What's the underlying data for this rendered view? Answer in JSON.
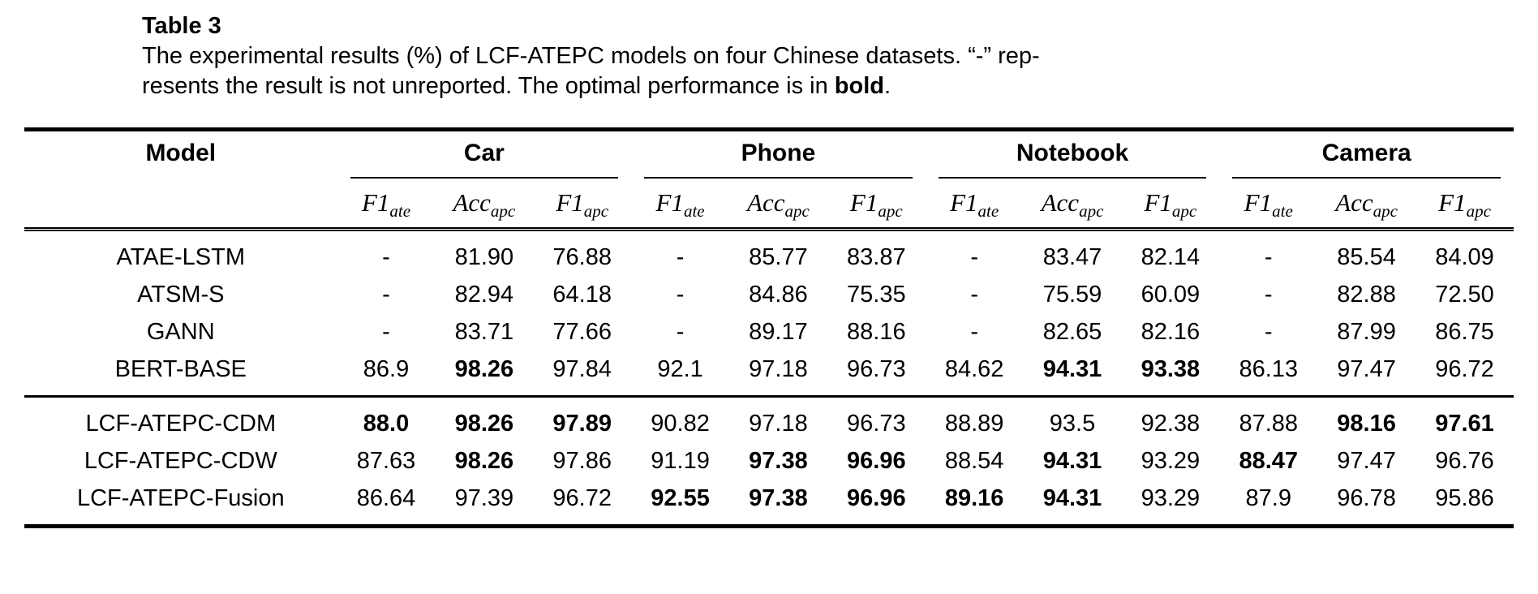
{
  "caption": {
    "label": "Table 3",
    "line1": "The experimental results (%) of LCF-ATEPC models on four Chinese datasets. “-” rep-",
    "line2_pre": "resents the result is not unreported. The optimal performance is in ",
    "line2_bold": "bold",
    "line2_post": "."
  },
  "table": {
    "model_header": "Model",
    "col_groups": [
      "Car",
      "Phone",
      "Notebook",
      "Camera"
    ],
    "sub_columns": [
      {
        "name": "F1",
        "sub": "ate"
      },
      {
        "name": "Acc",
        "sub": "apc"
      },
      {
        "name": "F1",
        "sub": "apc"
      }
    ],
    "row_groups": [
      {
        "rows": [
          {
            "model": "ATAE-LSTM",
            "values": [
              "-",
              "81.90",
              "76.88",
              "-",
              "85.77",
              "83.87",
              "-",
              "83.47",
              "82.14",
              "-",
              "85.54",
              "84.09"
            ],
            "bold_idx": []
          },
          {
            "model": "ATSM-S",
            "values": [
              "-",
              "82.94",
              "64.18",
              "-",
              "84.86",
              "75.35",
              "-",
              "75.59",
              "60.09",
              "-",
              "82.88",
              "72.50"
            ],
            "bold_idx": []
          },
          {
            "model": "GANN",
            "values": [
              "-",
              "83.71",
              "77.66",
              "-",
              "89.17",
              "88.16",
              "-",
              "82.65",
              "82.16",
              "-",
              "87.99",
              "86.75"
            ],
            "bold_idx": []
          },
          {
            "model": "BERT-BASE",
            "values": [
              "86.9",
              "98.26",
              "97.84",
              "92.1",
              "97.18",
              "96.73",
              "84.62",
              "94.31",
              "93.38",
              "86.13",
              "97.47",
              "96.72"
            ],
            "bold_idx": [
              1,
              7,
              8
            ]
          }
        ]
      },
      {
        "rows": [
          {
            "model": "LCF-ATEPC-CDM",
            "values": [
              "88.0",
              "98.26",
              "97.89",
              "90.82",
              "97.18",
              "96.73",
              "88.89",
              "93.5",
              "92.38",
              "87.88",
              "98.16",
              "97.61"
            ],
            "bold_idx": [
              0,
              1,
              2,
              10,
              11
            ]
          },
          {
            "model": "LCF-ATEPC-CDW",
            "values": [
              "87.63",
              "98.26",
              "97.86",
              "91.19",
              "97.38",
              "96.96",
              "88.54",
              "94.31",
              "93.29",
              "88.47",
              "97.47",
              "96.76"
            ],
            "bold_idx": [
              1,
              4,
              5,
              7,
              9
            ]
          },
          {
            "model": "LCF-ATEPC-Fusion",
            "values": [
              "86.64",
              "97.39",
              "96.72",
              "92.55",
              "97.38",
              "96.96",
              "89.16",
              "94.31",
              "93.29",
              "87.9",
              "96.78",
              "95.86"
            ],
            "bold_idx": [
              3,
              4,
              5,
              6,
              7
            ]
          }
        ]
      }
    ]
  }
}
